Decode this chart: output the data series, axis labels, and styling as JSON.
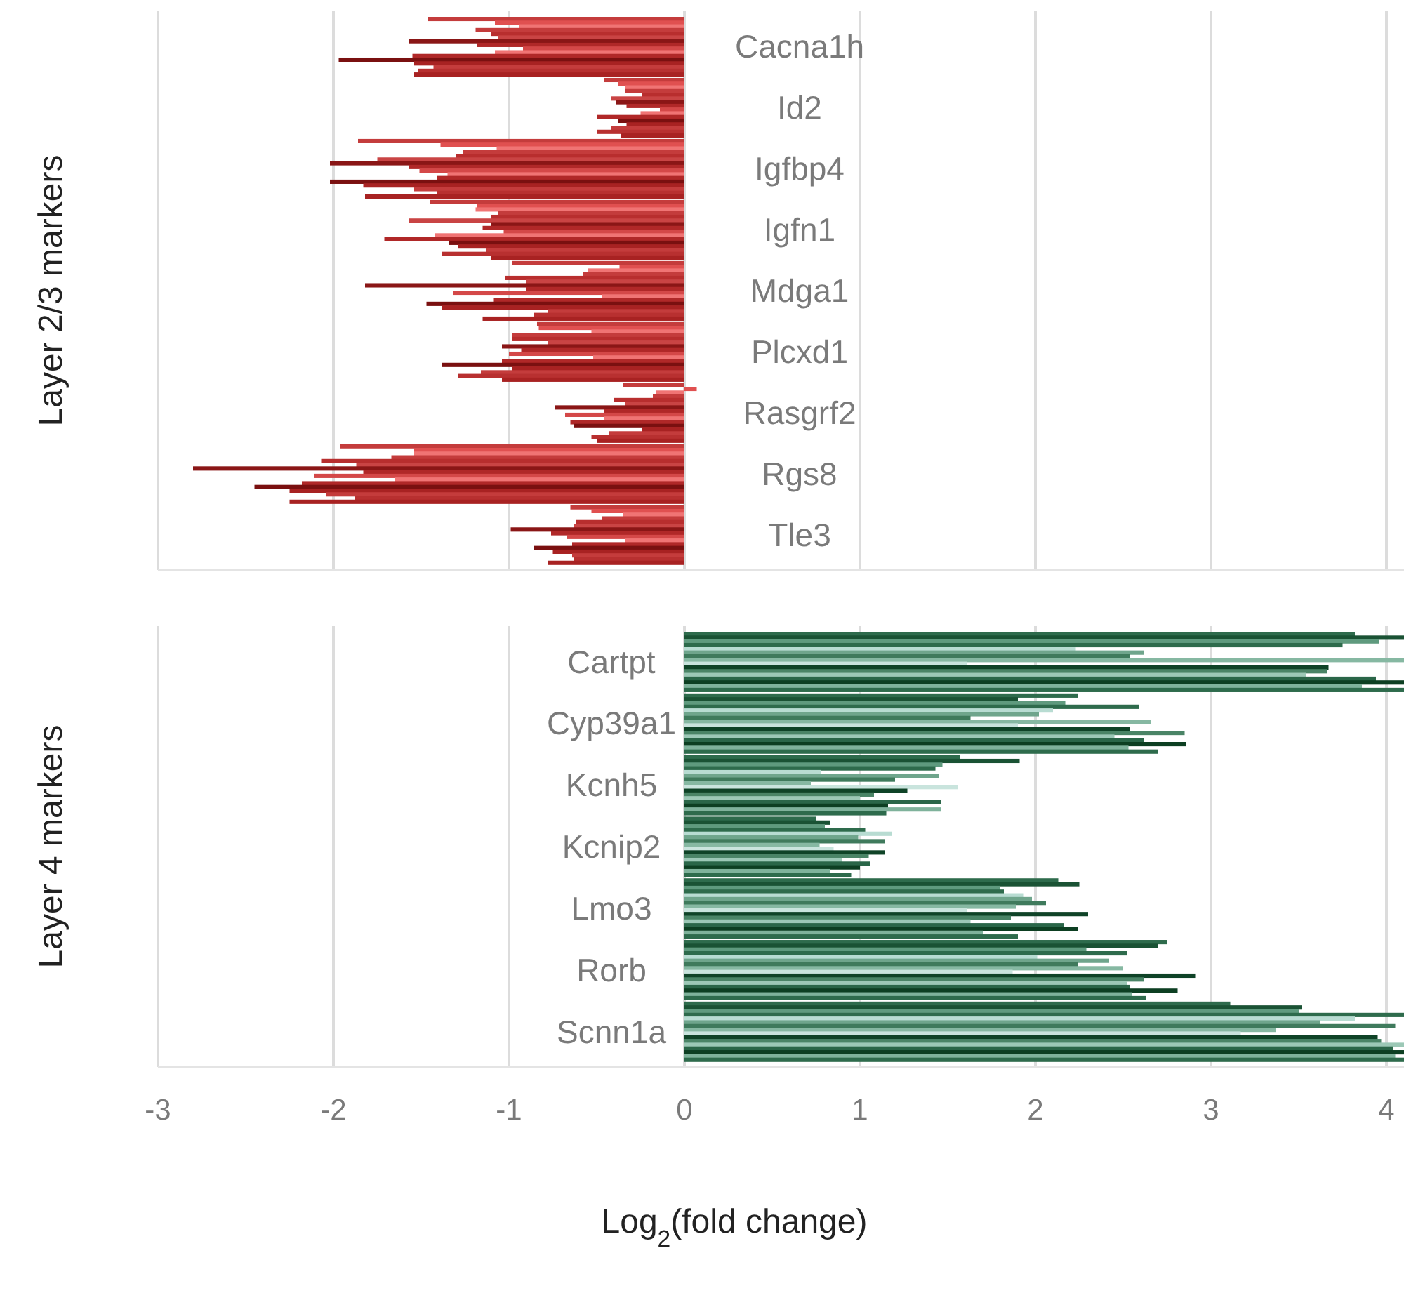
{
  "chart_data": [
    {
      "type": "bar",
      "orientation": "horizontal",
      "ylabel": "Layer 2/3 markers",
      "categories": [
        "Cacna1h",
        "Id2",
        "Igfbp4",
        "Igfn1",
        "Mdga1",
        "Plcxd1",
        "Rasgrf2",
        "Rgs8",
        "Tle3"
      ],
      "xlim": [
        -3,
        4.1
      ],
      "xticks": [
        -3,
        -2,
        -1,
        0,
        1,
        2,
        3,
        4
      ],
      "grid": "x",
      "tick_labels": "y",
      "series": [
        {
          "color": "#c43c3c",
          "values": [
            -1.46,
            -0.46,
            -1.86,
            -1.45,
            -0.98,
            -0.84,
            -0.35,
            -1.96,
            -0.65
          ]
        },
        {
          "color": "#e05050",
          "values": [
            -1.08,
            -0.38,
            -1.39,
            -1.18,
            -0.37,
            -0.83,
            0.07,
            -1.54,
            -0.53
          ]
        },
        {
          "color": "#f07474",
          "values": [
            -0.94,
            -0.34,
            -1.07,
            -1.19,
            -0.55,
            -0.53,
            -0.16,
            -1.54,
            -0.35
          ]
        },
        {
          "color": "#c43c3c",
          "values": [
            -1.19,
            -0.34,
            -1.26,
            -1.06,
            -0.58,
            -0.98,
            -0.18,
            -1.67,
            -0.47
          ]
        },
        {
          "color": "#b82e2e",
          "values": [
            -1.1,
            -0.24,
            -1.3,
            -1.1,
            -1.02,
            -0.98,
            -0.4,
            -2.07,
            -0.62
          ]
        },
        {
          "color": "#c94444",
          "values": [
            -1.06,
            -0.42,
            -1.75,
            -1.57,
            -0.9,
            -0.78,
            -0.34,
            -1.87,
            -0.63
          ]
        },
        {
          "color": "#8a1616",
          "values": [
            -1.57,
            -0.39,
            -2.02,
            -1.1,
            -1.82,
            -1.04,
            -0.74,
            -2.8,
            -0.99
          ]
        },
        {
          "color": "#b02828",
          "values": [
            -1.18,
            -0.33,
            -1.57,
            -1.15,
            -0.9,
            -0.93,
            -0.46,
            -1.83,
            -0.76
          ]
        },
        {
          "color": "#d44848",
          "values": [
            -0.92,
            -0.14,
            -1.51,
            -1.03,
            -1.32,
            -1.0,
            -0.68,
            -2.11,
            -0.67
          ]
        },
        {
          "color": "#f07474",
          "values": [
            -1.08,
            -0.25,
            -1.35,
            -1.42,
            -0.47,
            -0.52,
            -0.46,
            -1.65,
            -0.34
          ]
        },
        {
          "color": "#b02828",
          "values": [
            -1.55,
            -0.5,
            -1.41,
            -1.71,
            -1.09,
            -1.04,
            -0.65,
            -2.18,
            -0.64
          ]
        },
        {
          "color": "#7a1010",
          "values": [
            -1.97,
            -0.38,
            -2.02,
            -1.34,
            -1.47,
            -1.38,
            -0.63,
            -2.45,
            -0.86
          ]
        },
        {
          "color": "#a82222",
          "values": [
            -1.54,
            -0.33,
            -1.83,
            -1.29,
            -1.38,
            -0.98,
            -0.24,
            -2.25,
            -0.75
          ]
        },
        {
          "color": "#c43c3c",
          "values": [
            -1.43,
            -0.42,
            -1.54,
            -1.13,
            -0.78,
            -1.16,
            -0.43,
            -2.04,
            -0.64
          ]
        },
        {
          "color": "#b83030",
          "values": [
            -1.52,
            -0.5,
            -1.41,
            -1.38,
            -0.86,
            -1.29,
            -0.53,
            -1.88,
            -0.63
          ]
        },
        {
          "color": "#a82222",
          "values": [
            -1.54,
            -0.36,
            -1.82,
            -1.1,
            -1.15,
            -1.04,
            -0.5,
            -2.25,
            -0.78
          ]
        }
      ]
    },
    {
      "type": "bar",
      "orientation": "horizontal",
      "ylabel": "Layer 4 markers",
      "xlabel": "Log$_{2}$(fold change)",
      "categories": [
        "Cartpt",
        "Cyp39a1",
        "Kcnh5",
        "Kcnip2",
        "Lmo3",
        "Rorb",
        "Scnn1a"
      ],
      "xlim": [
        -3,
        4.1
      ],
      "xticks": [
        -3,
        -2,
        -1,
        0,
        1,
        2,
        3,
        4
      ],
      "grid": "x",
      "series": [
        {
          "color": "#2e6b4c",
          "values": [
            3.82,
            2.24,
            1.57,
            0.75,
            2.13,
            2.75,
            3.11
          ]
        },
        {
          "color": "#1a5234",
          "values": [
            4.1,
            1.9,
            1.91,
            0.83,
            2.25,
            2.7,
            3.52
          ]
        },
        {
          "color": "#5f9a7e",
          "values": [
            3.96,
            2.17,
            1.47,
            0.8,
            1.8,
            2.29,
            3.5
          ]
        },
        {
          "color": "#2e6b4c",
          "values": [
            3.75,
            2.59,
            1.43,
            1.03,
            1.82,
            2.52,
            4.1
          ]
        },
        {
          "color": "#b8dcd2",
          "values": [
            2.23,
            2.1,
            0.78,
            1.18,
            1.93,
            2.01,
            3.82
          ]
        },
        {
          "color": "#6fa58c",
          "values": [
            2.62,
            2.02,
            1.45,
            0.99,
            1.98,
            2.42,
            3.62
          ]
        },
        {
          "color": "#3f7a5c",
          "values": [
            2.54,
            1.63,
            1.2,
            1.14,
            2.06,
            2.24,
            4.05
          ]
        },
        {
          "color": "#86b8a2",
          "values": [
            4.1,
            2.66,
            0.72,
            0.77,
            1.89,
            2.5,
            3.37
          ]
        },
        {
          "color": "#c9e4dd",
          "values": [
            1.61,
            1.9,
            1.56,
            0.85,
            1.61,
            1.87,
            3.17
          ]
        },
        {
          "color": "#0f4327",
          "values": [
            3.67,
            2.54,
            1.27,
            1.14,
            2.3,
            2.91,
            3.95
          ]
        },
        {
          "color": "#4a8466",
          "values": [
            3.66,
            2.85,
            1.08,
            1.05,
            1.86,
            2.62,
            3.97
          ]
        },
        {
          "color": "#9cc8b6",
          "values": [
            3.54,
            2.45,
            1.0,
            0.9,
            1.63,
            2.52,
            4.1
          ]
        },
        {
          "color": "#2a6648",
          "values": [
            3.94,
            2.62,
            1.46,
            1.06,
            2.16,
            2.54,
            4.04
          ]
        },
        {
          "color": "#0d3f22",
          "values": [
            4.1,
            2.86,
            1.16,
            1.0,
            2.24,
            2.81,
            4.1
          ]
        },
        {
          "color": "#7fb29b",
          "values": [
            3.86,
            2.53,
            1.46,
            0.83,
            1.7,
            2.55,
            4.05
          ]
        },
        {
          "color": "#2e6b4c",
          "values": [
            4.1,
            2.7,
            1.15,
            0.95,
            1.9,
            2.63,
            4.1
          ]
        }
      ]
    }
  ]
}
